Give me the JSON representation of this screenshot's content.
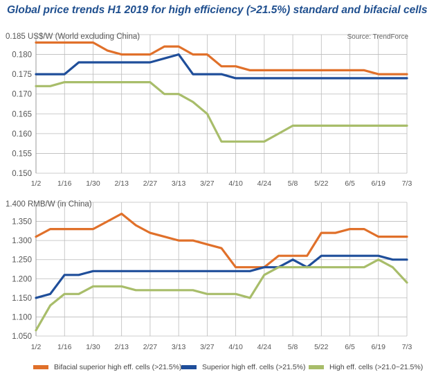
{
  "title": "Global price trends H1 2019 for high efficiency (>21.5%) standard and bifacial cells",
  "source": "Source: TrendForce",
  "colors": {
    "bifacial": "#e0702a",
    "superior": "#1f4e9a",
    "high": "#a8bd6a",
    "grid": "#bbbbbb",
    "title": "#1f4f8f"
  },
  "legend": [
    {
      "label": "Bifacial superior high eff. cells (>21.5%)",
      "color": "#e0702a"
    },
    {
      "label": "Superior high eff. cells (>21.5%)",
      "color": "#1f4e9a"
    },
    {
      "label": "High eff. cells (>21.0~21.5%)",
      "color": "#a8bd6a"
    }
  ],
  "chart_data": [
    {
      "type": "line",
      "ylabel": "US$/W (World excluding China)",
      "ylim": [
        0.15,
        0.185
      ],
      "yticks": [
        "0.150",
        "0.155",
        "0.160",
        "0.165",
        "0.170",
        "0.175",
        "0.180",
        "0.185"
      ],
      "xtick_labels": [
        "1/2",
        "1/16",
        "1/30",
        "2/13",
        "2/27",
        "3/13",
        "3/27",
        "4/10",
        "4/24",
        "5/8",
        "5/22",
        "6/5",
        "6/19",
        "7/3"
      ],
      "grid": true,
      "series": [
        {
          "name": "Superior high eff. cells (>21.5%)",
          "x": [
            "1/2",
            "1/9",
            "1/16",
            "1/23",
            "1/30",
            "2/6",
            "2/13",
            "2/20",
            "2/27",
            "3/6",
            "3/13",
            "3/20",
            "3/27",
            "4/3",
            "4/10",
            "4/17",
            "4/24",
            "5/1",
            "5/8",
            "5/15",
            "5/22",
            "5/29",
            "6/5",
            "6/12",
            "6/19",
            "6/26",
            "7/3"
          ],
          "values": [
            0.175,
            0.175,
            0.175,
            0.178,
            0.178,
            0.178,
            0.178,
            0.178,
            0.178,
            0.179,
            0.18,
            0.175,
            0.175,
            0.175,
            0.174,
            0.174,
            0.174,
            0.174,
            0.174,
            0.174,
            0.174,
            0.174,
            0.174,
            0.174,
            0.174,
            0.174,
            0.174
          ]
        },
        {
          "name": "Bifacial superior high eff. cells (>21.5%)",
          "x": [
            "1/2",
            "1/9",
            "1/16",
            "1/23",
            "1/30",
            "2/6",
            "2/13",
            "2/20",
            "2/27",
            "3/6",
            "3/13",
            "3/20",
            "3/27",
            "4/3",
            "4/10",
            "4/17",
            "4/24",
            "5/1",
            "5/8",
            "5/15",
            "5/22",
            "5/29",
            "6/5",
            "6/12",
            "6/19",
            "6/26",
            "7/3"
          ],
          "values": [
            0.183,
            0.183,
            0.183,
            0.183,
            0.183,
            0.181,
            0.18,
            0.18,
            0.18,
            0.182,
            0.182,
            0.18,
            0.18,
            0.177,
            0.177,
            0.176,
            0.176,
            0.176,
            0.176,
            0.176,
            0.176,
            0.176,
            0.176,
            0.176,
            0.175,
            0.175,
            0.175
          ]
        },
        {
          "name": "High eff. cells (>21.0~21.5%)",
          "x": [
            "1/2",
            "1/9",
            "1/16",
            "1/23",
            "1/30",
            "2/6",
            "2/13",
            "2/20",
            "2/27",
            "3/6",
            "3/13",
            "3/20",
            "3/27",
            "4/3",
            "4/10",
            "4/17",
            "4/24",
            "5/1",
            "5/8",
            "5/15",
            "5/22",
            "5/29",
            "6/5",
            "6/12",
            "6/19",
            "6/26",
            "7/3"
          ],
          "values": [
            0.172,
            0.172,
            0.173,
            0.173,
            0.173,
            0.173,
            0.173,
            0.173,
            0.173,
            0.17,
            0.17,
            0.168,
            0.165,
            0.158,
            0.158,
            0.158,
            0.158,
            0.16,
            0.162,
            0.162,
            0.162,
            0.162,
            0.162,
            0.162,
            0.162,
            0.162,
            0.162
          ]
        }
      ]
    },
    {
      "type": "line",
      "ylabel": "RMB/W (in China)",
      "ylim": [
        1.05,
        1.4
      ],
      "yticks": [
        "1.050",
        "1.100",
        "1.150",
        "1.200",
        "1.250",
        "1.300",
        "1.350",
        "1.400"
      ],
      "xtick_labels": [
        "1/2",
        "1/16",
        "1/30",
        "2/13",
        "2/27",
        "3/13",
        "3/27",
        "4/10",
        "4/24",
        "5/8",
        "5/22",
        "6/5",
        "6/19",
        "7/3"
      ],
      "grid": true,
      "series": [
        {
          "name": "Bifacial superior high eff. cells (>21.5%)",
          "x": [
            "1/2",
            "1/9",
            "1/16",
            "1/23",
            "1/30",
            "2/6",
            "2/13",
            "2/20",
            "2/27",
            "3/6",
            "3/13",
            "3/20",
            "3/27",
            "4/3",
            "4/10",
            "4/17",
            "4/24",
            "5/1",
            "5/8",
            "5/15",
            "5/22",
            "5/29",
            "6/5",
            "6/12",
            "6/19",
            "6/26",
            "7/3"
          ],
          "values": [
            1.31,
            1.33,
            1.33,
            1.33,
            1.33,
            1.35,
            1.37,
            1.34,
            1.32,
            1.31,
            1.3,
            1.3,
            1.29,
            1.28,
            1.23,
            1.23,
            1.23,
            1.26,
            1.26,
            1.26,
            1.32,
            1.32,
            1.33,
            1.33,
            1.31,
            1.31,
            1.31
          ]
        },
        {
          "name": "Superior high eff. cells (>21.5%)",
          "x": [
            "1/2",
            "1/9",
            "1/16",
            "1/23",
            "1/30",
            "2/6",
            "2/13",
            "2/20",
            "2/27",
            "3/6",
            "3/13",
            "3/20",
            "3/27",
            "4/3",
            "4/10",
            "4/17",
            "4/24",
            "5/1",
            "5/8",
            "5/15",
            "5/22",
            "5/29",
            "6/5",
            "6/12",
            "6/19",
            "6/26",
            "7/3"
          ],
          "values": [
            1.15,
            1.16,
            1.21,
            1.21,
            1.22,
            1.22,
            1.22,
            1.22,
            1.22,
            1.22,
            1.22,
            1.22,
            1.22,
            1.22,
            1.22,
            1.22,
            1.23,
            1.23,
            1.25,
            1.23,
            1.26,
            1.26,
            1.26,
            1.26,
            1.26,
            1.25,
            1.25
          ]
        },
        {
          "name": "High eff. cells (>21.0~21.5%)",
          "x": [
            "1/2",
            "1/9",
            "1/16",
            "1/23",
            "1/30",
            "2/6",
            "2/13",
            "2/20",
            "2/27",
            "3/6",
            "3/13",
            "3/20",
            "3/27",
            "4/3",
            "4/10",
            "4/17",
            "4/24",
            "5/1",
            "5/8",
            "5/15",
            "5/22",
            "5/29",
            "6/5",
            "6/12",
            "6/19",
            "6/26",
            "7/3"
          ],
          "values": [
            1.065,
            1.13,
            1.16,
            1.16,
            1.18,
            1.18,
            1.18,
            1.17,
            1.17,
            1.17,
            1.17,
            1.17,
            1.16,
            1.16,
            1.16,
            1.15,
            1.21,
            1.23,
            1.23,
            1.23,
            1.23,
            1.23,
            1.23,
            1.23,
            1.25,
            1.23,
            1.19
          ]
        }
      ]
    }
  ]
}
